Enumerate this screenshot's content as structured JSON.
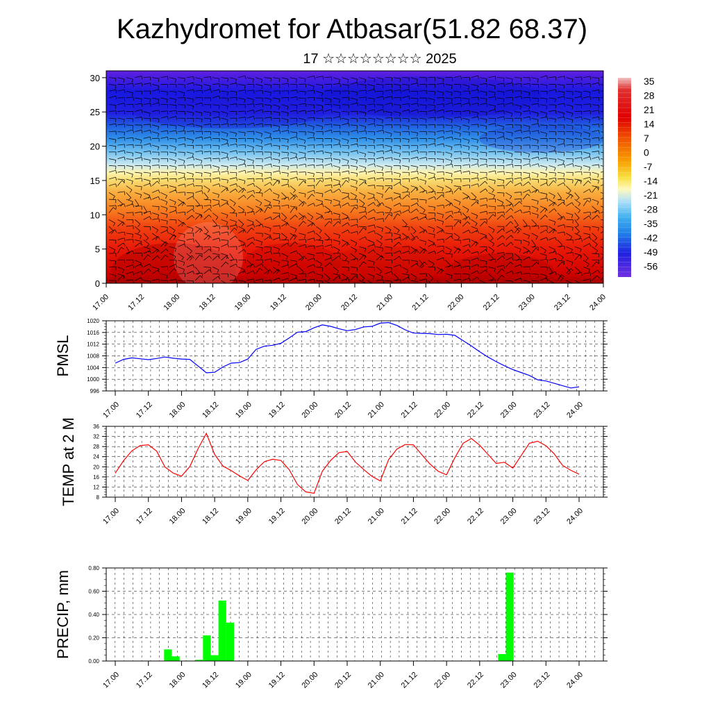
{
  "title": "Kazhydromet for Atbasar(51.82 68.37)",
  "subtitle": "17 ☆☆☆☆☆☆☆☆ 2025",
  "time_tick_labels": [
    "17.00",
    "17.12",
    "18.00",
    "18.12",
    "19.00",
    "19.12",
    "20.00",
    "20.12",
    "21.00",
    "21.12",
    "22.00",
    "22.12",
    "23.00",
    "23.12",
    "24.00"
  ],
  "colorbar": {
    "labels": [
      "35",
      "28",
      "21",
      "14",
      "7",
      "0",
      "-7",
      "-14",
      "-21",
      "-28",
      "-35",
      "-42",
      "-49",
      "-56"
    ]
  },
  "chart_data": [
    {
      "type": "heatmap",
      "title": "",
      "xlabel": "",
      "ylabel": "",
      "x_ticks": [
        "17.00",
        "17.12",
        "18.00",
        "18.12",
        "19.00",
        "19.12",
        "20.00",
        "20.12",
        "21.00",
        "21.12",
        "22.00",
        "22.12",
        "23.00",
        "23.12",
        "24.00"
      ],
      "y_ticks": [
        0,
        5,
        10,
        15,
        20,
        25,
        30
      ],
      "ylim": [
        0,
        31
      ],
      "levels": [
        35,
        28,
        21,
        14,
        7,
        0,
        -7,
        -14,
        -21,
        -28,
        -35,
        -42,
        -49,
        -56
      ],
      "description_colors": {
        "warm": "#e00000",
        "mid": "#f5e070",
        "cold": "#2020e0"
      }
    },
    {
      "type": "line",
      "ylabel": "PMSL",
      "ylim": [
        996,
        1020
      ],
      "y_ticks": [
        996,
        1000,
        1004,
        1008,
        1012,
        1016,
        1020
      ],
      "color": "#0000ff",
      "x_start": "17.00",
      "x_step_hours": 3,
      "values": [
        1005.5,
        1006.8,
        1007.3,
        1007.0,
        1006.7,
        1007.1,
        1007.6,
        1007.2,
        1006.9,
        1006.8,
        1004.5,
        1002.2,
        1002.4,
        1004.2,
        1005.5,
        1005.7,
        1006.9,
        1010.2,
        1011.3,
        1011.6,
        1012.3,
        1014.1,
        1016.1,
        1016.3,
        1017.6,
        1018.6,
        1018.1,
        1017.3,
        1016.6,
        1017.0,
        1017.9,
        1018.1,
        1019.2,
        1019.4,
        1018.4,
        1016.9,
        1015.8,
        1015.7,
        1015.6,
        1015.3,
        1015.4,
        1015.0,
        1013.2,
        1011.4,
        1009.4,
        1007.6,
        1006.0,
        1004.6,
        1003.3,
        1002.3,
        1001.3,
        999.8,
        999.4,
        998.6,
        997.8,
        997.0,
        997.4
      ]
    },
    {
      "type": "line",
      "ylabel": "TEMP at 2 M",
      "ylim": [
        8,
        36
      ],
      "y_ticks": [
        8,
        12,
        16,
        20,
        24,
        28,
        32,
        36
      ],
      "color": "#ff0000",
      "x_start": "17.00",
      "x_step_hours": 3,
      "values": [
        17.5,
        22.4,
        26.3,
        28.4,
        28.7,
        26.2,
        19.9,
        17.5,
        16.3,
        20.1,
        27.2,
        33.2,
        24.9,
        20.3,
        18.5,
        16.4,
        14.6,
        18.8,
        22.0,
        23.0,
        22.5,
        18.9,
        13.0,
        10.1,
        9.5,
        18.2,
        22.5,
        25.6,
        26.1,
        21.9,
        18.9,
        16.2,
        14.4,
        22.8,
        27.0,
        28.8,
        28.7,
        24.8,
        21.1,
        18.2,
        16.8,
        23.6,
        29.3,
        31.2,
        28.5,
        24.9,
        21.3,
        21.8,
        19.5,
        24.4,
        29.3,
        30.1,
        28.3,
        25.1,
        20.6,
        18.6,
        17.1
      ]
    },
    {
      "type": "bar",
      "ylabel": "PRECIP, mm",
      "ylim": [
        0,
        0.8
      ],
      "y_ticks": [
        "0.00",
        "0.20",
        "0.40",
        "0.60",
        "0.80"
      ],
      "color": "#00ff00",
      "x_start": "17.00",
      "x_step_hours": 3,
      "values": [
        0,
        0,
        0,
        0,
        0,
        0,
        0,
        0.1,
        0.04,
        0,
        0,
        0.01,
        0.22,
        0.05,
        0.52,
        0.33,
        0,
        0,
        0,
        0,
        0,
        0,
        0,
        0,
        0,
        0,
        0,
        0,
        0,
        0,
        0,
        0,
        0,
        0,
        0,
        0,
        0,
        0,
        0,
        0,
        0,
        0,
        0,
        0,
        0,
        0,
        0,
        0,
        0,
        0,
        0.06,
        0.76,
        0,
        0,
        0,
        0
      ]
    }
  ]
}
